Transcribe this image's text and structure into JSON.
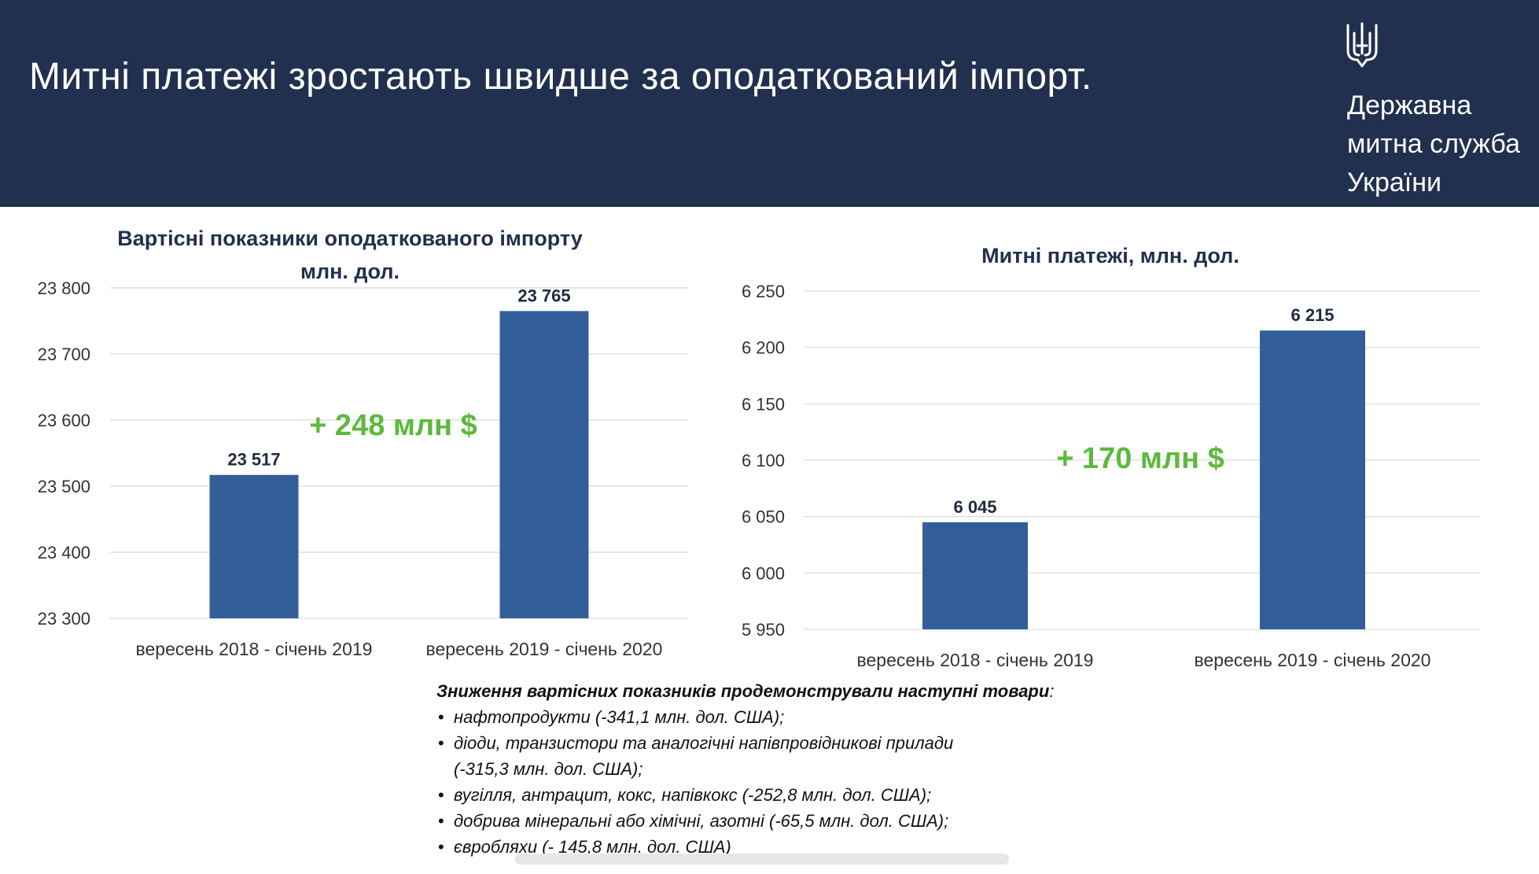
{
  "header": {
    "title": "Митні платежі зростають швидше за оподаткований імпорт.",
    "org_lines": [
      "Державна",
      "митна служба",
      "України"
    ],
    "logo_icon": "trident-icon"
  },
  "colors": {
    "header_bg": "#22304f",
    "bar": "#335f99",
    "annotation": "#5cb93c",
    "gridline": "#d9d9d9"
  },
  "chart_data": [
    {
      "type": "bar",
      "title_lines": [
        "Вартісні показники оподаткованого імпорту",
        "млн. дол."
      ],
      "categories": [
        "вересень 2018 - січень 2019",
        "вересень 2019 - січень 2020"
      ],
      "values": [
        23517,
        23765
      ],
      "value_labels": [
        "23 517",
        "23 765"
      ],
      "ylim": [
        23300,
        23800
      ],
      "yticks": [
        23300,
        23400,
        23500,
        23600,
        23700,
        23800
      ],
      "ytick_labels": [
        "23 300",
        "23 400",
        "23 500",
        "23 600",
        "23 700",
        "23 800"
      ],
      "grid": true,
      "annotation": "+ 248 млн $"
    },
    {
      "type": "bar",
      "title_lines": [
        "Митні платежі, млн. дол."
      ],
      "categories": [
        "вересень 2018 - січень 2019",
        "вересень 2019 - січень 2020"
      ],
      "values": [
        6045,
        6215
      ],
      "value_labels": [
        "6 045",
        "6 215"
      ],
      "ylim": [
        5950,
        6250
      ],
      "yticks": [
        5950,
        6000,
        6050,
        6100,
        6150,
        6200,
        6250
      ],
      "ytick_labels": [
        "5 950",
        "6 000",
        "6 050",
        "6 100",
        "6 150",
        "6 200",
        "6 250"
      ],
      "grid": true,
      "annotation": "+ 170 млн $"
    }
  ],
  "notes": {
    "intro": "Зниження вартісних показників продемонстрували наступні товари",
    "intro_suffix": ":",
    "items": [
      "нафтопродукти (-341,1 млн. дол. США);",
      "діоди, транзистори та аналогічні напівпровідникові прилади",
      "(-315,3 млн. дол. США);",
      "вугілля, антрацит, кокс, напівкокс (-252,8 млн. дол. США);",
      "добрива мінеральні або хімічні, азотні (-65,5 млн. дол. США);",
      "євробляхи (- 145,8 млн. дол. США)"
    ]
  }
}
